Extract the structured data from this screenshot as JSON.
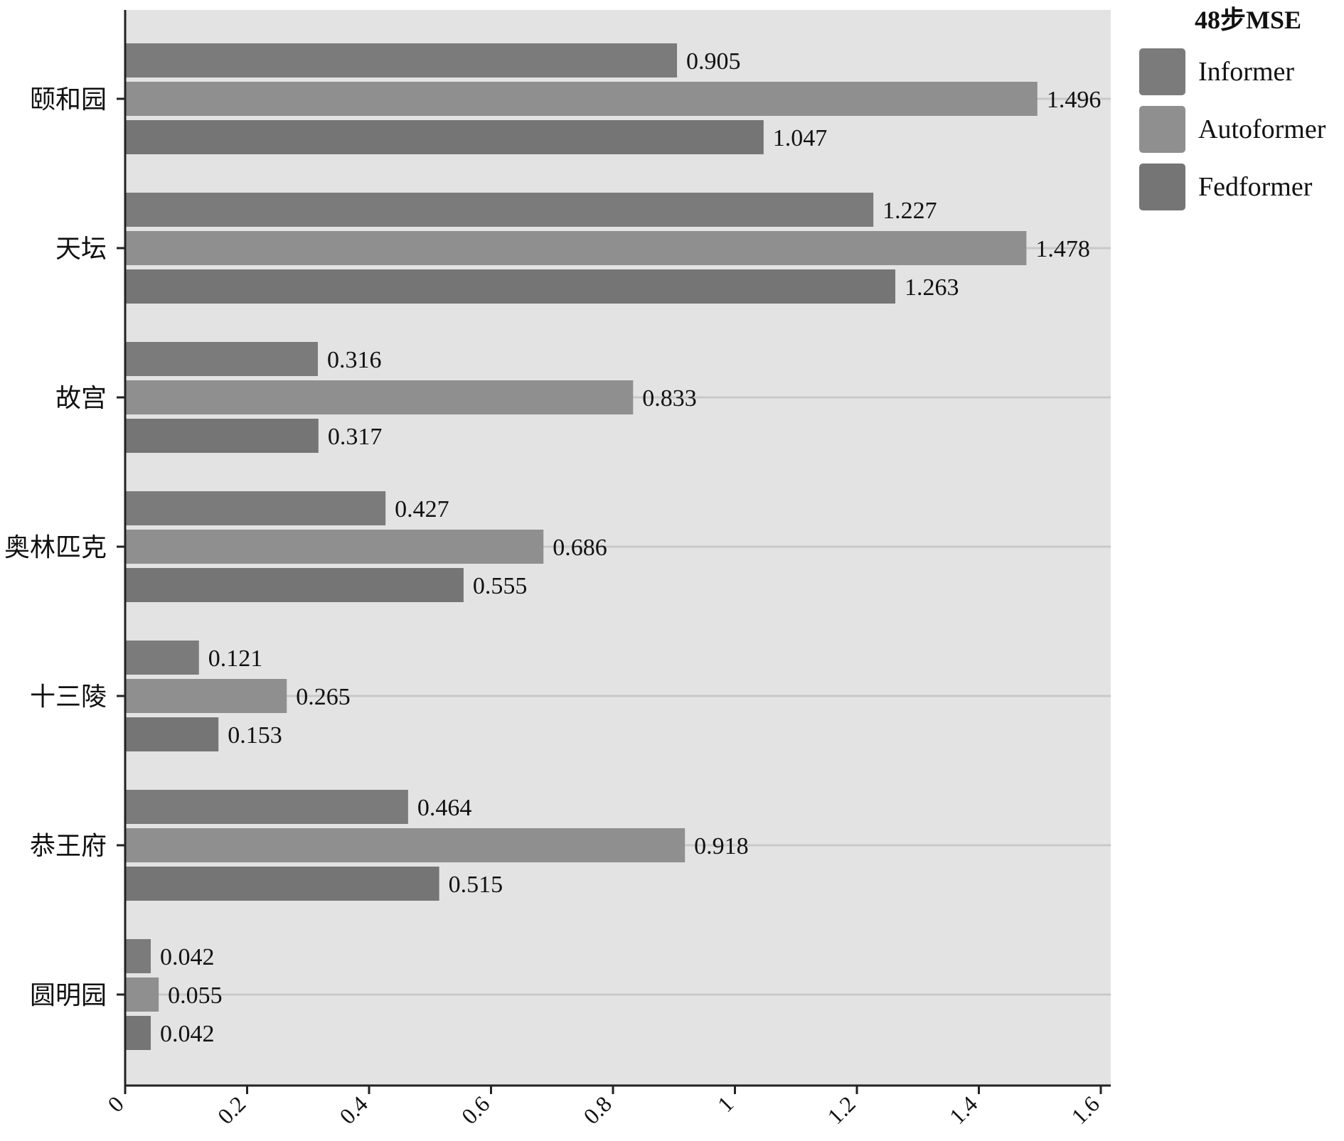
{
  "chart_data": {
    "type": "bar",
    "orientation": "horizontal",
    "legend_title": "48步MSE",
    "legend_position": "top-right",
    "categories": [
      "颐和园",
      "天坛",
      "故宫",
      "奥林匹克",
      "十三陵",
      "恭王府",
      "圆明园"
    ],
    "series": [
      {
        "name": "Informer",
        "color": "#7b7b7b",
        "values": [
          0.905,
          1.227,
          0.316,
          0.427,
          0.121,
          0.464,
          0.042
        ]
      },
      {
        "name": "Autoformer",
        "color": "#8f8f8f",
        "values": [
          1.496,
          1.478,
          0.833,
          0.686,
          0.265,
          0.918,
          0.055
        ]
      },
      {
        "name": "Fedformer",
        "color": "#757575",
        "values": [
          1.047,
          1.263,
          0.317,
          0.555,
          0.153,
          0.515,
          0.042
        ]
      }
    ],
    "value_labels": [
      [
        "0.905",
        "1.227",
        "0.316",
        "0.427",
        "0.121",
        "0.464",
        "0.042"
      ],
      [
        "1.496",
        "1.478",
        "0.833",
        "0.686",
        "0.265",
        "0.918",
        "0.055"
      ],
      [
        "1.047",
        "1.263",
        "0.317",
        "0.555",
        "0.153",
        "0.515",
        "0.042"
      ]
    ],
    "xlim": [
      0,
      1.6
    ],
    "x_ticks": [
      0,
      0.2,
      0.4,
      0.6,
      0.8,
      1,
      1.2,
      1.4,
      1.6
    ],
    "x_tick_labels": [
      "0",
      "0.2",
      "0.4",
      "0.6",
      "0.8",
      "1",
      "1.2",
      "1.4",
      "1.6"
    ],
    "xlabel": "",
    "ylabel": "",
    "grid": "horizontal",
    "plot_background": "#e3e3e3"
  }
}
